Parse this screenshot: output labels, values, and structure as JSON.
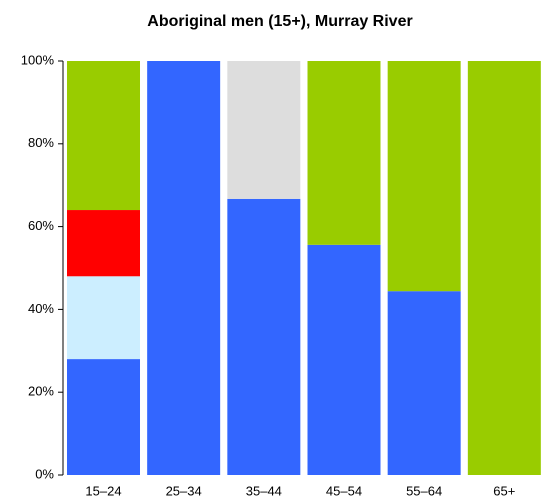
{
  "chart_data": {
    "type": "stacked_bar",
    "title": "Aboriginal men (15+), Murray River",
    "categories": [
      "15–24",
      "25–34",
      "35–44",
      "45–54",
      "55–64",
      "65+"
    ],
    "series": [
      {
        "color": "#3366ff",
        "values": [
          28,
          100,
          66.7,
          55.6,
          44.4,
          0
        ]
      },
      {
        "color": "#cceeff",
        "values": [
          20,
          0,
          0,
          0,
          0,
          0
        ]
      },
      {
        "color": "#ff0000",
        "values": [
          16,
          0,
          0,
          0,
          0,
          0
        ]
      },
      {
        "color": "#dddddd",
        "values": [
          0,
          0,
          33.3,
          0,
          0,
          0
        ]
      },
      {
        "color": "#99cc00",
        "values": [
          36,
          0,
          0,
          44.4,
          55.6,
          100
        ]
      }
    ],
    "ylim": [
      0,
      100
    ],
    "yticks": [
      {
        "value": 0,
        "label": "0%"
      },
      {
        "value": 20,
        "label": "20%"
      },
      {
        "value": 40,
        "label": "40%"
      },
      {
        "value": 60,
        "label": "60%"
      },
      {
        "value": 80,
        "label": "80%"
      },
      {
        "value": 100,
        "label": "100%"
      }
    ]
  }
}
